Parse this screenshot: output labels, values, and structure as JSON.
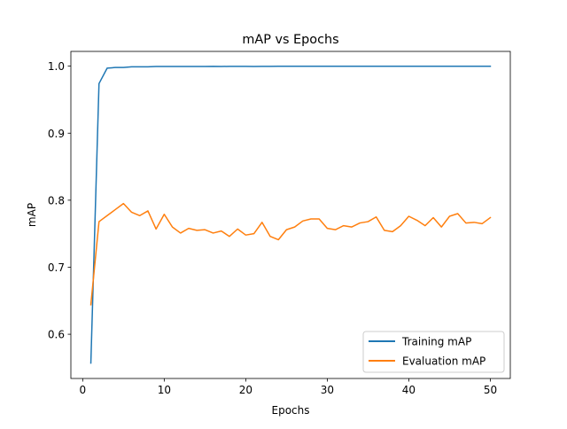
{
  "chart_data": {
    "type": "line",
    "title": "mAP vs Epochs",
    "xlabel": "Epochs",
    "ylabel": "mAP",
    "xlim": [
      -1.45,
      52.45
    ],
    "ylim": [
      0.534,
      1.022
    ],
    "xticks": [
      0,
      10,
      20,
      30,
      40,
      50
    ],
    "xtick_labels": [
      "0",
      "10",
      "20",
      "30",
      "40",
      "50"
    ],
    "yticks": [
      0.6,
      0.7,
      0.8,
      0.9,
      1.0
    ],
    "ytick_labels": [
      "0.6",
      "0.7",
      "0.8",
      "0.9",
      "1.0"
    ],
    "grid": false,
    "legend_position": "lower-right",
    "x": [
      1,
      2,
      3,
      4,
      5,
      6,
      7,
      8,
      9,
      10,
      11,
      12,
      13,
      14,
      15,
      16,
      17,
      18,
      19,
      20,
      21,
      22,
      23,
      24,
      25,
      26,
      27,
      28,
      29,
      30,
      31,
      32,
      33,
      34,
      35,
      36,
      37,
      38,
      39,
      40,
      41,
      42,
      43,
      44,
      45,
      46,
      47,
      48,
      49,
      50
    ],
    "series": [
      {
        "name": "Training mAP",
        "color": "#1f77b4",
        "values": [
          0.557,
          0.974,
          0.997,
          0.998,
          0.998,
          0.999,
          0.999,
          0.999,
          0.9995,
          0.9995,
          0.9995,
          0.9995,
          0.9995,
          0.9995,
          0.9995,
          0.9997,
          0.9995,
          0.9997,
          0.9997,
          0.9997,
          0.9995,
          0.9997,
          0.9997,
          0.9998,
          0.9998,
          0.9998,
          0.9998,
          0.9998,
          0.9999,
          0.9999,
          0.9999,
          0.9999,
          0.9999,
          0.9999,
          0.9999,
          0.9999,
          0.9999,
          0.9999,
          0.9999,
          0.9999,
          0.9999,
          0.9999,
          0.9999,
          0.9999,
          0.9999,
          0.9999,
          0.9999,
          0.9999,
          0.9999,
          0.9999
        ]
      },
      {
        "name": "Evaluation mAP",
        "color": "#ff7f0e",
        "values": [
          0.644,
          0.768,
          0.777,
          0.786,
          0.795,
          0.782,
          0.777,
          0.784,
          0.757,
          0.779,
          0.76,
          0.751,
          0.758,
          0.755,
          0.756,
          0.751,
          0.754,
          0.746,
          0.757,
          0.748,
          0.75,
          0.767,
          0.746,
          0.741,
          0.756,
          0.76,
          0.769,
          0.772,
          0.772,
          0.758,
          0.756,
          0.762,
          0.76,
          0.766,
          0.768,
          0.775,
          0.755,
          0.753,
          0.762,
          0.776,
          0.77,
          0.762,
          0.774,
          0.76,
          0.776,
          0.78,
          0.766,
          0.767,
          0.765,
          0.774
        ]
      }
    ]
  }
}
